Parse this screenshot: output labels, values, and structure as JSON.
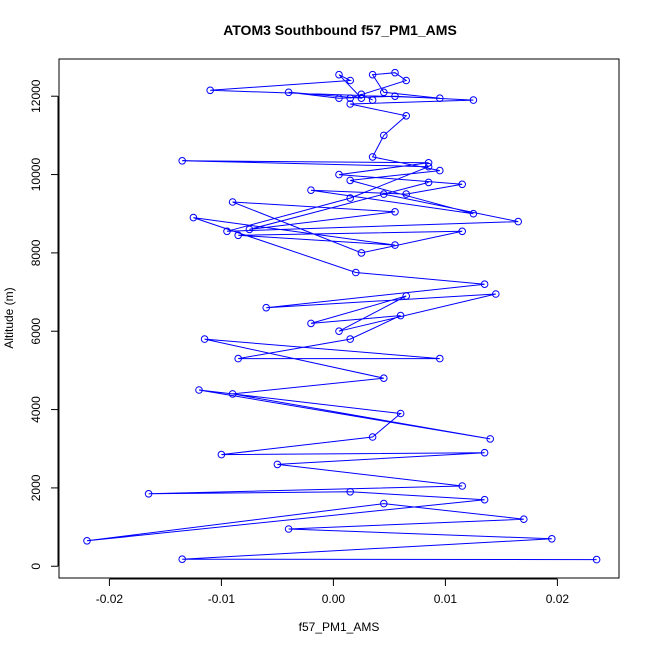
{
  "chart_data": {
    "type": "line",
    "title": "ATOM3 Southbound f57_PM1_AMS",
    "xlabel": "f57_PM1_AMS",
    "ylabel": "Altitude (m)",
    "xlim": [
      -0.0245,
      0.0255
    ],
    "ylim": [
      -300,
      12950
    ],
    "xticks": [
      -0.02,
      -0.01,
      0.0,
      0.01,
      0.02
    ],
    "xtick_labels": [
      "-0.02",
      "-0.01",
      "0.00",
      "0.01",
      "0.02"
    ],
    "yticks": [
      0,
      2000,
      4000,
      6000,
      8000,
      10000,
      12000
    ],
    "ytick_labels": [
      "0",
      "2000",
      "4000",
      "6000",
      "8000",
      "10000",
      "12000"
    ],
    "grid": false,
    "series": [
      {
        "color": "#0000ff",
        "marker": "open-circle",
        "x": [
          0.0235,
          -0.0135,
          0.0195,
          -0.004,
          0.017,
          0.0045,
          -0.022,
          0.0135,
          0.0015,
          -0.0165,
          0.0115,
          -0.005,
          0.0135,
          -0.01,
          0.0035,
          0.006,
          -0.012,
          0.014,
          -0.009,
          0.0045,
          -0.0115,
          0.0095,
          -0.0085,
          0.0015,
          0.006,
          -0.002,
          0.0065,
          0.0005,
          0.0145,
          -0.006,
          0.0135,
          0.002,
          -0.0125,
          0.0055,
          -0.0085,
          0.0115,
          0.0025,
          -0.009,
          0.0055,
          -0.0075,
          0.0085,
          0.0045,
          0.0165,
          -0.0095,
          0.0015,
          0.0085,
          -0.0135,
          0.0085,
          0.0005,
          0.0115,
          0.0065,
          -0.002,
          0.0125,
          0.0015,
          0.0095,
          0.0035,
          0.0045,
          0.0065,
          0.0015,
          0.0125,
          0.0055,
          0.0005,
          -0.004,
          0.0025,
          0.0005,
          0.0015,
          -0.011,
          0.0095,
          0.0045,
          0.0035,
          0.0055,
          0.0065,
          0.0015,
          0.0025,
          0.0035
        ],
        "y": [
          170,
          180,
          700,
          950,
          1200,
          1600,
          650,
          1700,
          1900,
          1850,
          2050,
          2600,
          2900,
          2850,
          3300,
          3900,
          4500,
          3250,
          4400,
          4800,
          5800,
          5300,
          5300,
          5800,
          6400,
          6200,
          6900,
          6000,
          6950,
          6600,
          7200,
          7500,
          8900,
          8200,
          8450,
          8550,
          8000,
          9300,
          9050,
          8600,
          9800,
          9500,
          8800,
          8550,
          9400,
          10200,
          10350,
          10300,
          10000,
          9750,
          9500,
          9600,
          9000,
          9850,
          10100,
          10450,
          11000,
          11500,
          11800,
          11900,
          12000,
          11950,
          12100,
          11950,
          12550,
          12400,
          12150,
          11950,
          12100,
          12550,
          12600,
          12400,
          11950,
          12050,
          11900
        ]
      }
    ]
  }
}
